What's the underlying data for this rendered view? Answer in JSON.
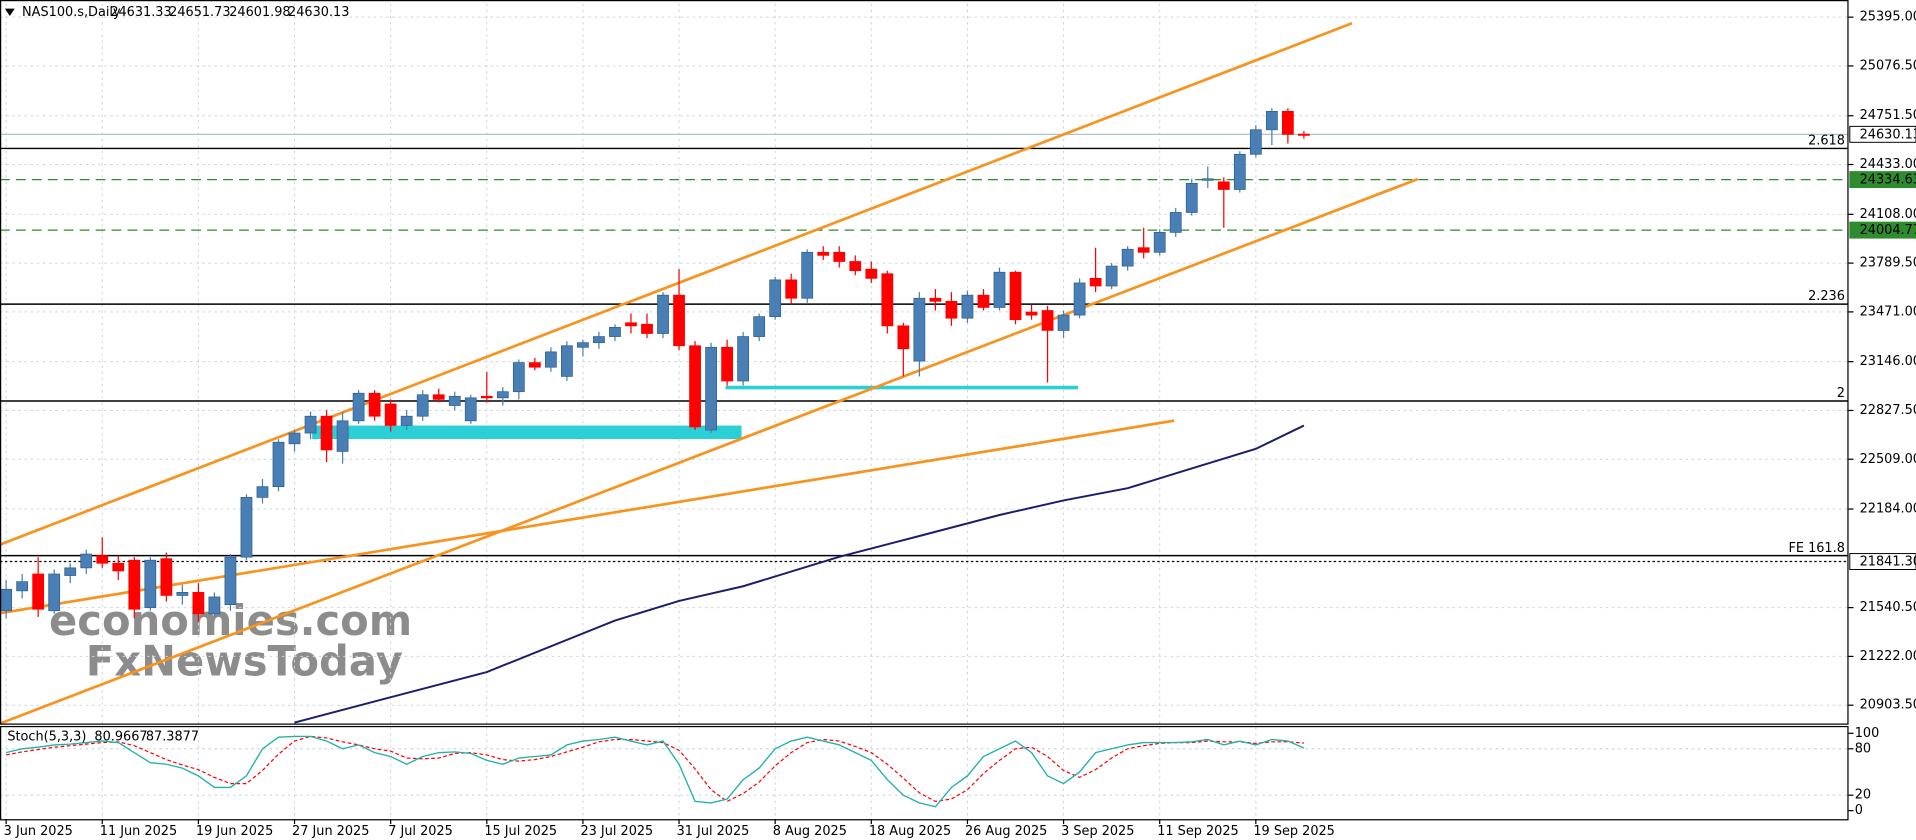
{
  "chart_data": {
    "type": "candlestick",
    "symbol": "NAS100.s,Daily",
    "up_color": "#4a7fb5",
    "down_color": "#ff0000",
    "grid": true,
    "categories": [
      "3 Jun 2025",
      null,
      null,
      null,
      null,
      null,
      "11 Jun 2025",
      null,
      null,
      null,
      null,
      null,
      "19 Jun 2025",
      null,
      null,
      null,
      null,
      null,
      "27 Jun 2025",
      null,
      null,
      null,
      null,
      null,
      "7 Jul 2025",
      null,
      null,
      null,
      null,
      null,
      "15 Jul 2025",
      null,
      null,
      null,
      null,
      null,
      "23 Jul 2025",
      null,
      null,
      null,
      null,
      null,
      "31 Jul 2025",
      null,
      null,
      null,
      null,
      null,
      "8 Aug 2025",
      null,
      null,
      null,
      null,
      null,
      "18 Aug 2025",
      null,
      null,
      null,
      null,
      null,
      "26 Aug 2025",
      null,
      null,
      null,
      null,
      null,
      "3 Sep 2025",
      null,
      null,
      null,
      null,
      null,
      "11 Sep 2025",
      null,
      null,
      null,
      null,
      null,
      "19 Sep 2025",
      null,
      null,
      null
    ],
    "open": [
      21520,
      21650,
      21760,
      21520,
      21750,
      21800,
      21880,
      21830,
      21850,
      21540,
      21860,
      21620,
      21640,
      21500,
      21560,
      21870,
      22260,
      22330,
      22610,
      22680,
      22790,
      22560,
      22760,
      22940,
      22870,
      22730,
      22790,
      22930,
      22860,
      22760,
      22920,
      22910,
      22950,
      23140,
      23110,
      23050,
      23240,
      23270,
      23310,
      23400,
      23390,
      23330,
      23580,
      23250,
      22700,
      23240,
      23020,
      23310,
      23440,
      23680,
      23560,
      23860,
      23860,
      23800,
      23750,
      23720,
      23380,
      23150,
      23560,
      23540,
      23430,
      23580,
      23500,
      23730,
      23470,
      23480,
      23350,
      23450,
      23690,
      23640,
      23770,
      23890,
      23860,
      23990,
      24120,
      24330,
      24320,
      24270,
      24500,
      24660,
      24780,
      24631.33
    ],
    "high": [
      21720,
      21760,
      21870,
      21790,
      21830,
      21920,
      22000,
      21880,
      21870,
      21870,
      21900,
      21690,
      21700,
      21640,
      21890,
      22280,
      22380,
      22640,
      22700,
      22820,
      22830,
      22820,
      22960,
      22960,
      22900,
      22830,
      22960,
      22970,
      22950,
      22930,
      23080,
      22980,
      23160,
      23170,
      23240,
      23280,
      23290,
      23340,
      23390,
      23460,
      23460,
      23600,
      23750,
      23280,
      23270,
      23290,
      23340,
      23460,
      23700,
      23720,
      23880,
      23900,
      23900,
      23840,
      23800,
      23740,
      23400,
      23600,
      23620,
      23600,
      23610,
      23620,
      23760,
      23740,
      23520,
      23510,
      23480,
      23690,
      23890,
      23790,
      23900,
      24020,
      24010,
      24150,
      24340,
      24420,
      24350,
      24520,
      24690,
      24800,
      24800,
      24651.73
    ],
    "low": [
      21470,
      21600,
      21480,
      21500,
      21700,
      21760,
      21800,
      21720,
      21470,
      21520,
      21580,
      21560,
      21450,
      21480,
      21520,
      21850,
      22220,
      22300,
      22560,
      22640,
      22490,
      22480,
      22740,
      22760,
      22690,
      22700,
      22760,
      22880,
      22830,
      22740,
      22880,
      22860,
      22900,
      23090,
      23080,
      23020,
      23180,
      23230,
      23280,
      23330,
      23300,
      23300,
      23220,
      22700,
      22680,
      22990,
      22990,
      23280,
      23420,
      23520,
      23530,
      23810,
      23760,
      23710,
      23660,
      23330,
      23050,
      23050,
      23480,
      23380,
      23400,
      23480,
      23480,
      23390,
      23420,
      23010,
      23300,
      23430,
      23600,
      23620,
      23740,
      23820,
      23840,
      23960,
      24100,
      24280,
      24020,
      24250,
      24480,
      24560,
      24570,
      24601.98
    ],
    "close": [
      21660,
      21710,
      21530,
      21760,
      21800,
      21890,
      21830,
      21780,
      21530,
      21850,
      21620,
      21640,
      21500,
      21610,
      21870,
      22260,
      22330,
      22620,
      22680,
      22790,
      22570,
      22760,
      22940,
      22790,
      22730,
      22790,
      22930,
      22900,
      22920,
      22910,
      22910,
      22950,
      23140,
      23110,
      23210,
      23250,
      23270,
      23310,
      23370,
      23380,
      23330,
      23580,
      23250,
      22720,
      23240,
      23020,
      23310,
      23440,
      23680,
      23560,
      23860,
      23840,
      23800,
      23740,
      23690,
      23380,
      23230,
      23560,
      23540,
      23430,
      23580,
      23500,
      23730,
      23420,
      23450,
      23350,
      23450,
      23660,
      23640,
      23770,
      23880,
      23860,
      23990,
      24120,
      24310,
      24340,
      24270,
      24500,
      24660,
      24780,
      24630,
      24630.13
    ],
    "ylim": [
      20784,
      25483
    ],
    "yticks": [
      {
        "value": 25395,
        "label": "25395.00"
      },
      {
        "value": 25076.5,
        "label": "25076.50"
      },
      {
        "value": 24751.5,
        "label": "24751.50"
      },
      {
        "value": 24433,
        "label": "24433.00"
      },
      {
        "value": 24108,
        "label": "24108.00"
      },
      {
        "value": 23789.5,
        "label": "23789.50"
      },
      {
        "value": 23471,
        "label": "23471.00"
      },
      {
        "value": 23146,
        "label": "23146.00"
      },
      {
        "value": 22827.5,
        "label": "22827.50"
      },
      {
        "value": 22509,
        "label": "22509.00"
      },
      {
        "value": 22184,
        "label": "22184.00"
      },
      {
        "value": 21540.5,
        "label": "21540.50"
      },
      {
        "value": 21222,
        "label": "21222.00"
      },
      {
        "value": 20903.5,
        "label": "20903.50"
      }
    ],
    "levels": [
      {
        "label": "2.618",
        "value": 24538,
        "color": "#000000"
      },
      {
        "label": "2.236",
        "value": 23522,
        "color": "#000000"
      },
      {
        "label": "2",
        "value": 22889,
        "color": "#000000"
      },
      {
        "label": "FE 161.8",
        "value": 21880,
        "color": "#000000"
      }
    ],
    "price_lines": [
      {
        "value": 24334.63,
        "color": "#2e8b2e",
        "style": "dashed"
      },
      {
        "value": 24004.77,
        "color": "#2e8b2e",
        "style": "dashed"
      },
      {
        "value": {
          "value": 21841.3,
          "label": "21841.30"
        },
        "color": "#000000",
        "style": "dotted"
      }
    ],
    "current_price_color": "#b0c4d0",
    "trendlines": [
      {
        "x": [
          -0.38,
          84.0
        ],
        "y": [
          21952,
          25355
        ],
        "color": "#f7931e"
      },
      {
        "x": [
          -0.38,
          88.1
        ],
        "y": [
          20784,
          24338
        ],
        "color": "#f7931e"
      },
      {
        "x": [
          -0.38,
          72.9
        ],
        "y": [
          21504,
          22761
        ],
        "color": "#f7931e"
      }
    ],
    "zones": [
      {
        "x": [
          19.1,
          45.9
        ],
        "y": [
          22641,
          22729
        ],
        "color": "#2ccfd6"
      }
    ],
    "segments": [
      {
        "x": [
          44.9,
          66.9
        ],
        "y": [
          22977,
          22977
        ],
        "color": "#2ccfd6"
      }
    ],
    "moving_average": {
      "color": "#1b1f6b",
      "x": [
        18,
        23,
        30,
        38,
        42,
        46,
        52,
        57,
        62,
        66,
        70,
        74,
        78,
        81
      ],
      "values": [
        20790,
        20928,
        21120,
        21456,
        21584,
        21680,
        21872,
        22008,
        22145,
        22240,
        22320,
        22449,
        22577,
        22729
      ]
    },
    "stochastic": {
      "title": "Stoch(5,3,3)",
      "main_color": "#20b2aa",
      "signal_color": "#ff0000",
      "ylim": [
        -11,
        109.5
      ],
      "yticks": [
        100,
        80,
        20,
        0
      ],
      "main": [
        75,
        80,
        82,
        85,
        86,
        88,
        90,
        88,
        75,
        62,
        60,
        55,
        45,
        30,
        30,
        45,
        80,
        95,
        96,
        96,
        90,
        80,
        85,
        75,
        70,
        60,
        70,
        75,
        76,
        74,
        65,
        60,
        68,
        70,
        72,
        85,
        90,
        92,
        95,
        90,
        85,
        90,
        60,
        12,
        10,
        15,
        40,
        55,
        80,
        90,
        95,
        90,
        85,
        75,
        65,
        40,
        20,
        10,
        5,
        30,
        45,
        70,
        80,
        90,
        75,
        45,
        35,
        50,
        75,
        80,
        85,
        88,
        88,
        88,
        89,
        92,
        85,
        90,
        85,
        92,
        90,
        80.9667
      ],
      "signal": [
        72,
        76,
        79,
        82,
        84,
        86,
        88,
        89,
        84,
        75,
        66,
        59,
        53,
        43,
        35,
        35,
        52,
        73,
        90,
        96,
        94,
        89,
        85,
        80,
        77,
        68,
        67,
        68,
        74,
        75,
        72,
        66,
        64,
        66,
        70,
        76,
        82,
        89,
        92,
        92,
        90,
        88,
        78,
        54,
        27,
        12,
        22,
        37,
        58,
        75,
        88,
        92,
        90,
        83,
        75,
        60,
        42,
        23,
        12,
        15,
        27,
        48,
        65,
        80,
        82,
        70,
        52,
        43,
        53,
        68,
        80,
        84,
        87,
        88,
        88,
        90,
        89,
        89,
        87,
        89,
        89,
        87.3877
      ]
    },
    "watermark": [
      "economies.com",
      "FxNewsToday"
    ]
  }
}
